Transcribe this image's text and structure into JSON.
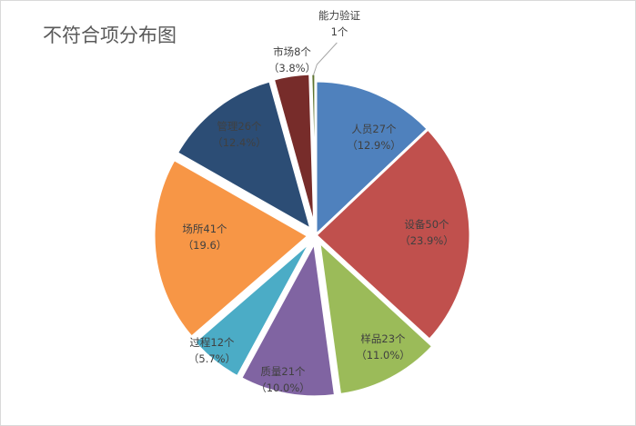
{
  "chart_data": {
    "type": "pie",
    "title": "不符合项分布图",
    "slices": [
      {
        "name": "人员",
        "value": 27,
        "line1": "人员27个",
        "line2": "（12.9%）",
        "color": "#4f81bd",
        "explode": false
      },
      {
        "name": "设备",
        "value": 50,
        "line1": "设备50个",
        "line2": "（23.9%）",
        "color": "#c0504d",
        "explode": false
      },
      {
        "name": "样品",
        "value": 23,
        "line1": "样品23个",
        "line2": "（11.0%）",
        "color": "#9bbb59",
        "explode": true
      },
      {
        "name": "质量",
        "value": 21,
        "line1": "质量21个",
        "line2": "（10.0%）",
        "color": "#8064a2",
        "explode": true
      },
      {
        "name": "过程",
        "value": 12,
        "line1": "过程12个",
        "line2": "（5.7%）",
        "color": "#4bacc6",
        "explode": true
      },
      {
        "name": "场所",
        "value": 41,
        "line1": "场所41个",
        "line2": "（19.6）",
        "color": "#f79646",
        "explode": true
      },
      {
        "name": "管理",
        "value": 26,
        "line1": "管理26个",
        "line2": "（12.4%）",
        "color": "#2c4d75",
        "explode": true
      },
      {
        "name": "市场",
        "value": 8,
        "line1": "市场8个",
        "line2": "（3.8%）",
        "color": "#772c2a",
        "explode": true
      },
      {
        "name": "能力验证",
        "value": 1,
        "line1": "能力验证",
        "line2": "1个",
        "color": "#5f7530",
        "explode": true
      }
    ],
    "legend": "none",
    "start_angle": "12 o'clock, clockwise"
  }
}
